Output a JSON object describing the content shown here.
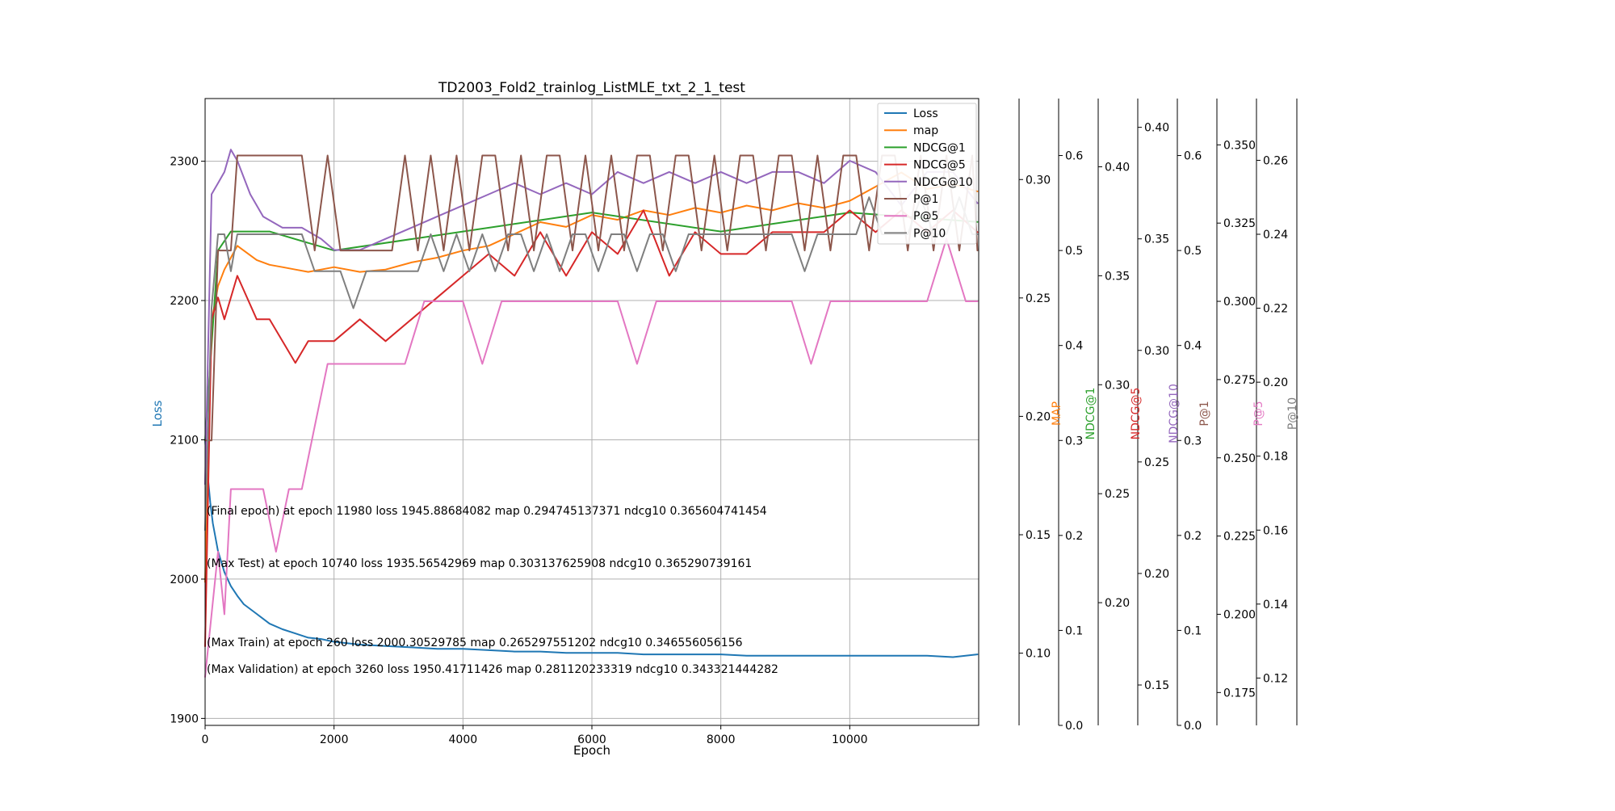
{
  "chart_data": {
    "type": "line",
    "title": "TD2003_Fold2_trainlog_ListMLE_txt_2_1_test",
    "xlabel": "Epoch",
    "xlim": [
      0,
      12000
    ],
    "x_ticks": [
      0,
      2000,
      4000,
      6000,
      8000,
      10000
    ],
    "grid": true,
    "legend_position": "top-right",
    "axes": [
      {
        "id": "loss",
        "label": "Loss",
        "color": "#1f77b4",
        "range": [
          1895,
          2345
        ],
        "ticks": [
          1900,
          2000,
          2100,
          2200,
          2300
        ]
      },
      {
        "id": "map",
        "label": "",
        "color": "#000000",
        "range": [
          0.0695,
          0.3342
        ],
        "ticks": [
          0.1,
          0.15,
          0.2,
          0.25,
          0.3
        ],
        "tick_labels": [
          "0.10",
          "0.15",
          "0.20",
          "0.25",
          "0.30"
        ]
      },
      {
        "id": "ndcg1",
        "label": "MAP",
        "color": "#ff7f0e",
        "range": [
          0.0,
          0.66
        ],
        "ticks": [
          0.0,
          0.1,
          0.2,
          0.3,
          0.4,
          0.5,
          0.6
        ],
        "tick_labels": [
          "0.0",
          "0.1",
          "0.2",
          "0.3",
          "0.4",
          "0.5",
          "0.6"
        ]
      },
      {
        "id": "ndcg5",
        "label": "NDCG@1",
        "color": "#2ca02c",
        "range": [
          0.1437,
          0.4313
        ],
        "ticks": [
          0.2,
          0.25,
          0.3,
          0.35,
          0.4
        ],
        "tick_labels": [
          "0.20",
          "0.25",
          "0.30",
          "0.35",
          "0.40"
        ]
      },
      {
        "id": "ndcg10",
        "label": "NDCG@5",
        "color": "#d62728",
        "range": [
          0.1319,
          0.4129
        ],
        "ticks": [
          0.15,
          0.2,
          0.25,
          0.3,
          0.35,
          0.4
        ],
        "tick_labels": [
          "0.15",
          "0.20",
          "0.25",
          "0.30",
          "0.35",
          "0.40"
        ]
      },
      {
        "id": "p1",
        "label": "NDCG@10",
        "color": "#9467bd",
        "range": [
          0.0,
          0.66
        ],
        "ticks": [
          0.0,
          0.1,
          0.2,
          0.3,
          0.4,
          0.5,
          0.6
        ],
        "tick_labels": [
          "0.0",
          "0.1",
          "0.2",
          "0.3",
          "0.4",
          "0.5",
          "0.6"
        ]
      },
      {
        "id": "p5",
        "label": "P@1",
        "color": "#8c564b",
        "range": [
          0.1645,
          0.3648
        ],
        "ticks": [
          0.175,
          0.2,
          0.225,
          0.25,
          0.275,
          0.3,
          0.325,
          0.35
        ],
        "tick_labels": [
          "0.175",
          "0.200",
          "0.225",
          "0.250",
          "0.275",
          "0.300",
          "0.325",
          "0.350"
        ]
      },
      {
        "id": "p10",
        "label": "P@5",
        "color": "#e377c2",
        "range": [
          0.1072,
          0.2767
        ],
        "ticks": [
          0.12,
          0.14,
          0.16,
          0.18,
          0.2,
          0.22,
          0.24,
          0.26
        ],
        "tick_labels": [
          "0.12",
          "0.14",
          "0.16",
          "0.18",
          "0.20",
          "0.22",
          "0.24",
          "0.26"
        ]
      },
      {
        "id": "extra",
        "label": "P@10",
        "color": "#7f7f7f",
        "range": [
          0,
          1
        ],
        "ticks": [],
        "tick_labels": []
      }
    ],
    "series": [
      {
        "name": "Loss",
        "color": "#1f77b4",
        "axis": "loss",
        "x": [
          0,
          40,
          80,
          120,
          200,
          300,
          400,
          500,
          600,
          800,
          1000,
          1200,
          1400,
          1600,
          1800,
          2000,
          2400,
          2800,
          3200,
          3600,
          4000,
          4400,
          4800,
          5200,
          5600,
          6000,
          6400,
          6800,
          7200,
          7600,
          8000,
          8400,
          8800,
          9200,
          9600,
          10000,
          10400,
          10800,
          11200,
          11600,
          11980
        ],
        "y": [
          2100,
          2075,
          2055,
          2040,
          2020,
          2005,
          1995,
          1988,
          1982,
          1975,
          1968,
          1964,
          1961,
          1958,
          1957,
          1955,
          1953,
          1952,
          1951,
          1950,
          1950,
          1949,
          1948,
          1948,
          1947,
          1947,
          1947,
          1946,
          1946,
          1946,
          1946,
          1945,
          1945,
          1945,
          1945,
          1945,
          1945,
          1945,
          1945,
          1944,
          1946
        ]
      },
      {
        "name": "map",
        "color": "#ff7f0e",
        "axis": "map",
        "x": [
          0,
          100,
          200,
          300,
          400,
          500,
          600,
          700,
          800,
          1000,
          1200,
          1400,
          1600,
          1800,
          2000,
          2400,
          2800,
          3200,
          3600,
          4000,
          4400,
          4800,
          5200,
          5600,
          6000,
          6400,
          6800,
          7200,
          7600,
          8000,
          8400,
          8800,
          9200,
          9600,
          10000,
          10400,
          10800,
          11200,
          11600,
          11980
        ],
        "y": [
          0.13,
          0.24,
          0.255,
          0.262,
          0.267,
          0.272,
          0.27,
          0.268,
          0.266,
          0.264,
          0.263,
          0.262,
          0.261,
          0.262,
          0.263,
          0.261,
          0.262,
          0.265,
          0.267,
          0.27,
          0.272,
          0.277,
          0.282,
          0.28,
          0.285,
          0.283,
          0.287,
          0.285,
          0.288,
          0.286,
          0.289,
          0.287,
          0.29,
          0.288,
          0.291,
          0.297,
          0.303,
          0.296,
          0.298,
          0.295
        ]
      },
      {
        "name": "NDCG@1",
        "color": "#2ca02c",
        "axis": "ndcg1",
        "x": [
          0,
          200,
          400,
          600,
          800,
          1000,
          2000,
          4000,
          6000,
          8000,
          10000,
          11980
        ],
        "y": [
          0.3,
          0.5,
          0.52,
          0.52,
          0.52,
          0.52,
          0.5,
          0.52,
          0.54,
          0.52,
          0.54,
          0.53
        ]
      },
      {
        "name": "NDCG@5",
        "color": "#d62728",
        "axis": "ndcg5",
        "x": [
          0,
          100,
          200,
          300,
          500,
          800,
          1000,
          1200,
          1400,
          1600,
          1800,
          2000,
          2400,
          2800,
          3200,
          3600,
          4000,
          4400,
          4800,
          5200,
          5600,
          6000,
          6400,
          6800,
          7200,
          7600,
          8000,
          8400,
          8800,
          9200,
          9600,
          10000,
          10400,
          10800,
          11200,
          11600,
          11980
        ],
        "y": [
          0.18,
          0.33,
          0.34,
          0.33,
          0.35,
          0.33,
          0.33,
          0.32,
          0.31,
          0.32,
          0.32,
          0.32,
          0.33,
          0.32,
          0.33,
          0.34,
          0.35,
          0.36,
          0.35,
          0.37,
          0.35,
          0.37,
          0.36,
          0.38,
          0.35,
          0.37,
          0.36,
          0.36,
          0.37,
          0.37,
          0.37,
          0.38,
          0.37,
          0.38,
          0.37,
          0.38,
          0.37
        ]
      },
      {
        "name": "NDCG@10",
        "color": "#9467bd",
        "axis": "ndcg10",
        "x": [
          0,
          100,
          200,
          300,
          400,
          500,
          700,
          900,
          1200,
          1500,
          1800,
          2000,
          2400,
          2800,
          3200,
          3600,
          4000,
          4400,
          4800,
          5200,
          5600,
          6000,
          6400,
          6800,
          7200,
          7600,
          8000,
          8400,
          8800,
          9200,
          9600,
          10000,
          10400,
          10800,
          11200,
          11600,
          11980
        ],
        "y": [
          0.24,
          0.37,
          0.375,
          0.38,
          0.39,
          0.385,
          0.37,
          0.36,
          0.355,
          0.355,
          0.35,
          0.345,
          0.345,
          0.35,
          0.355,
          0.36,
          0.365,
          0.37,
          0.375,
          0.37,
          0.375,
          0.37,
          0.38,
          0.375,
          0.38,
          0.375,
          0.38,
          0.375,
          0.38,
          0.38,
          0.375,
          0.385,
          0.38,
          0.365,
          0.38,
          0.38,
          0.366
        ]
      },
      {
        "name": "P@1",
        "color": "#8c564b",
        "axis": "p1",
        "x": [
          0,
          100,
          200,
          300,
          400,
          500,
          700,
          900,
          1100,
          1300,
          1500,
          1700,
          1900,
          2100,
          2300,
          2500,
          2700,
          2900,
          3100,
          3300,
          3500,
          3700,
          3900,
          4100,
          4300,
          4500,
          4700,
          4900,
          5100,
          5300,
          5500,
          5700,
          5900,
          6100,
          6300,
          6500,
          6700,
          6900,
          7100,
          7300,
          7500,
          7700,
          7900,
          8100,
          8300,
          8500,
          8700,
          8900,
          9100,
          9300,
          9500,
          9700,
          9900,
          10100,
          10300,
          10500,
          10700,
          10900,
          11100,
          11300,
          11500,
          11700,
          11900,
          11980
        ],
        "y": [
          0.3,
          0.3,
          0.5,
          0.5,
          0.5,
          0.6,
          0.6,
          0.6,
          0.6,
          0.6,
          0.6,
          0.5,
          0.6,
          0.5,
          0.5,
          0.5,
          0.5,
          0.5,
          0.6,
          0.5,
          0.6,
          0.5,
          0.6,
          0.5,
          0.6,
          0.6,
          0.5,
          0.6,
          0.5,
          0.6,
          0.6,
          0.5,
          0.6,
          0.5,
          0.6,
          0.5,
          0.6,
          0.6,
          0.5,
          0.6,
          0.6,
          0.5,
          0.6,
          0.5,
          0.6,
          0.6,
          0.5,
          0.6,
          0.6,
          0.5,
          0.6,
          0.5,
          0.6,
          0.6,
          0.5,
          0.6,
          0.6,
          0.5,
          0.6,
          0.5,
          0.6,
          0.5,
          0.6,
          0.5
        ]
      },
      {
        "name": "P@5",
        "color": "#e377c2",
        "axis": "p5",
        "x": [
          0,
          100,
          200,
          300,
          400,
          500,
          700,
          900,
          1100,
          1300,
          1500,
          1700,
          1900,
          2100,
          2300,
          2500,
          2800,
          3100,
          3400,
          3700,
          4000,
          4300,
          4600,
          4900,
          5200,
          5500,
          5800,
          6100,
          6400,
          6700,
          7000,
          7300,
          7600,
          7900,
          8200,
          8500,
          8800,
          9100,
          9400,
          9700,
          10000,
          10300,
          10600,
          10900,
          11200,
          11500,
          11800,
          11980
        ],
        "y": [
          0.18,
          0.2,
          0.22,
          0.2,
          0.24,
          0.24,
          0.24,
          0.24,
          0.22,
          0.24,
          0.24,
          0.26,
          0.28,
          0.28,
          0.28,
          0.28,
          0.28,
          0.28,
          0.3,
          0.3,
          0.3,
          0.28,
          0.3,
          0.3,
          0.3,
          0.3,
          0.3,
          0.3,
          0.3,
          0.28,
          0.3,
          0.3,
          0.3,
          0.3,
          0.3,
          0.3,
          0.3,
          0.3,
          0.28,
          0.3,
          0.3,
          0.3,
          0.3,
          0.3,
          0.3,
          0.32,
          0.3,
          0.3
        ]
      },
      {
        "name": "P@10",
        "color": "#7f7f7f",
        "axis": "p10",
        "x": [
          0,
          100,
          200,
          300,
          400,
          500,
          700,
          900,
          1100,
          1300,
          1500,
          1700,
          1900,
          2100,
          2300,
          2500,
          2700,
          2900,
          3100,
          3300,
          3500,
          3700,
          3900,
          4100,
          4300,
          4500,
          4700,
          4900,
          5100,
          5300,
          5500,
          5700,
          5900,
          6100,
          6300,
          6500,
          6700,
          6900,
          7100,
          7300,
          7500,
          7700,
          7900,
          8100,
          8300,
          8500,
          8700,
          8900,
          9100,
          9300,
          9500,
          9700,
          9900,
          10100,
          10300,
          10500,
          10700,
          10900,
          11100,
          11300,
          11500,
          11700,
          11900,
          11980
        ],
        "y": [
          0.16,
          0.22,
          0.24,
          0.24,
          0.23,
          0.24,
          0.24,
          0.24,
          0.24,
          0.24,
          0.24,
          0.23,
          0.23,
          0.23,
          0.22,
          0.23,
          0.23,
          0.23,
          0.23,
          0.23,
          0.24,
          0.23,
          0.24,
          0.23,
          0.24,
          0.23,
          0.24,
          0.24,
          0.23,
          0.24,
          0.23,
          0.24,
          0.24,
          0.23,
          0.24,
          0.24,
          0.23,
          0.24,
          0.24,
          0.23,
          0.24,
          0.24,
          0.24,
          0.24,
          0.24,
          0.24,
          0.24,
          0.24,
          0.24,
          0.23,
          0.24,
          0.24,
          0.24,
          0.24,
          0.25,
          0.24,
          0.24,
          0.24,
          0.25,
          0.24,
          0.24,
          0.25,
          0.24,
          0.24
        ]
      }
    ],
    "annotations": [
      "(Final epoch) at epoch 11980 loss 1945.88684082 map 0.294745137371 ndcg10 0.365604741454",
      "(Max Test) at epoch 10740 loss 1935.56542969 map 0.303137625908 ndcg10 0.365290739161",
      "(Max Train) at epoch 260 loss 2000.30529785 map 0.265297551202 ndcg10 0.346556056156",
      "(Max Validation) at epoch 3260 loss 1950.41711426 map 0.281120233319 ndcg10 0.343321444282"
    ]
  }
}
